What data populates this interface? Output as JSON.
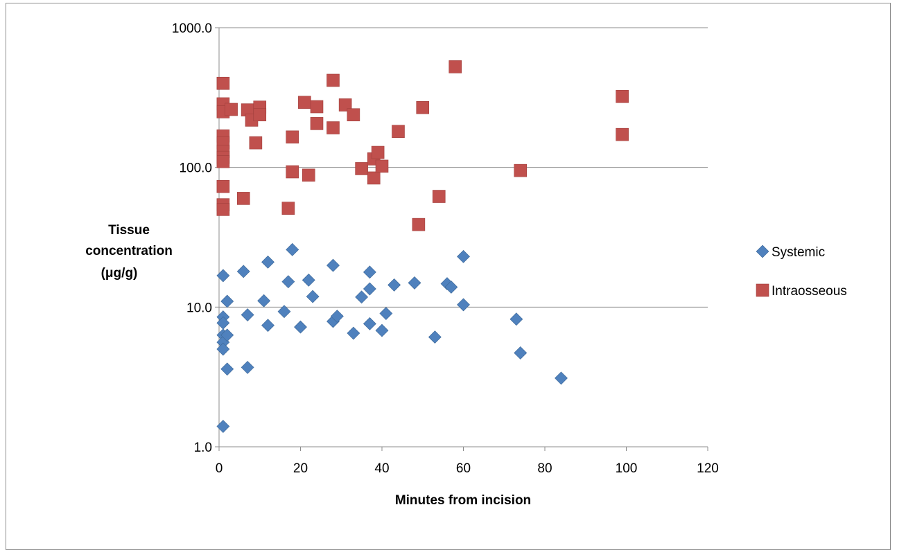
{
  "chart_data": {
    "type": "scatter",
    "xlabel": "Minutes from incision",
    "ylabel_lines": [
      "Tissue",
      "concentration",
      "(μg/g)"
    ],
    "x_axis": {
      "min": 0,
      "max": 120,
      "ticks": [
        "0",
        "20",
        "40",
        "60",
        "80",
        "100",
        "120"
      ],
      "tick_values": [
        0,
        20,
        40,
        60,
        80,
        100,
        120
      ]
    },
    "y_axis": {
      "scale": "log",
      "min": 1,
      "max": 1000,
      "ticks": [
        "1.0",
        "10.0",
        "100.0",
        "1000.0"
      ],
      "tick_values": [
        1,
        10,
        100,
        1000
      ]
    },
    "grid": "horizontal",
    "legend_position": "right",
    "series": [
      {
        "name": "Systemic",
        "marker": "diamond",
        "color": "#4f81bd",
        "points": [
          [
            1,
            16.8
          ],
          [
            1,
            8.5
          ],
          [
            1,
            7.7
          ],
          [
            1,
            6.3
          ],
          [
            1,
            5.6
          ],
          [
            1,
            5.0
          ],
          [
            1,
            1.4
          ],
          [
            2,
            11.0
          ],
          [
            2,
            6.3
          ],
          [
            2,
            3.6
          ],
          [
            6,
            18.0
          ],
          [
            7,
            8.8
          ],
          [
            7,
            3.7
          ],
          [
            11,
            11.1
          ],
          [
            12,
            21.0
          ],
          [
            12,
            7.4
          ],
          [
            16,
            9.3
          ],
          [
            17,
            15.2
          ],
          [
            18,
            25.8
          ],
          [
            20,
            7.2
          ],
          [
            22,
            15.6
          ],
          [
            23,
            11.9
          ],
          [
            28,
            19.9
          ],
          [
            28,
            7.9
          ],
          [
            29,
            8.6
          ],
          [
            33,
            6.5
          ],
          [
            35,
            11.8
          ],
          [
            37,
            17.8
          ],
          [
            37,
            13.5
          ],
          [
            37,
            7.6
          ],
          [
            40,
            6.8
          ],
          [
            41,
            9.0
          ],
          [
            43,
            14.4
          ],
          [
            48,
            14.9
          ],
          [
            53,
            6.1
          ],
          [
            56,
            14.7
          ],
          [
            57,
            13.9
          ],
          [
            60,
            23.0
          ],
          [
            60,
            10.4
          ],
          [
            73,
            8.2
          ],
          [
            74,
            4.7
          ],
          [
            84,
            3.1
          ]
        ]
      },
      {
        "name": "Intraosseous",
        "marker": "square",
        "color": "#c0504d",
        "points": [
          [
            1,
            400
          ],
          [
            1,
            285
          ],
          [
            1,
            250
          ],
          [
            1,
            168
          ],
          [
            1,
            150
          ],
          [
            1,
            130
          ],
          [
            1,
            118
          ],
          [
            1,
            110
          ],
          [
            1,
            73
          ],
          [
            1,
            54
          ],
          [
            1,
            50
          ],
          [
            3,
            260
          ],
          [
            6,
            60
          ],
          [
            7,
            258
          ],
          [
            8,
            218
          ],
          [
            9,
            150
          ],
          [
            10,
            270
          ],
          [
            10,
            238
          ],
          [
            17,
            51
          ],
          [
            18,
            165
          ],
          [
            18,
            93
          ],
          [
            21,
            292
          ],
          [
            22,
            88
          ],
          [
            24,
            272
          ],
          [
            24,
            206
          ],
          [
            28,
            420
          ],
          [
            28,
            192
          ],
          [
            31,
            280
          ],
          [
            33,
            238
          ],
          [
            35,
            98
          ],
          [
            38,
            115
          ],
          [
            38,
            84
          ],
          [
            39,
            128
          ],
          [
            40,
            102
          ],
          [
            44,
            181
          ],
          [
            49,
            39
          ],
          [
            50,
            268
          ],
          [
            54,
            62
          ],
          [
            58,
            525
          ],
          [
            74,
            95
          ],
          [
            99,
            322
          ],
          [
            99,
            172
          ]
        ]
      }
    ]
  }
}
